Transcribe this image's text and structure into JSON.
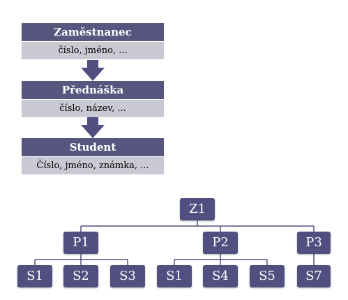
{
  "entities": [
    {
      "title": "Zaměstnanec",
      "attributes": "číslo, jméno, ..."
    },
    {
      "title": "Přednáška",
      "attributes": "číslo, název, ..."
    },
    {
      "title": "Student",
      "attributes": "Číslo, jméno, známka, ..."
    }
  ],
  "tree": {
    "root": "Z1",
    "level1": [
      "P1",
      "P2",
      "P3"
    ],
    "level2": [
      "S1",
      "S2",
      "S3",
      "S1",
      "S4",
      "S5",
      "S7"
    ]
  },
  "colors": {
    "header": "#57567f",
    "attribute_band": "#c9c9d4",
    "node": "#504f7f",
    "line": "#504f7f"
  }
}
